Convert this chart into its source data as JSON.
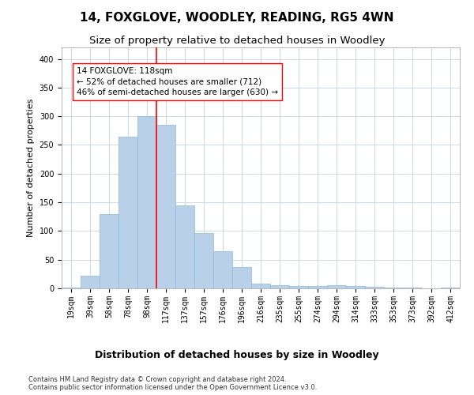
{
  "title": "14, FOXGLOVE, WOODLEY, READING, RG5 4WN",
  "subtitle": "Size of property relative to detached houses in Woodley",
  "xlabel_bottom": "Distribution of detached houses by size in Woodley",
  "ylabel": "Number of detached properties",
  "bar_color": "#b8d0e8",
  "bar_edge_color": "#90b8d8",
  "categories": [
    "19sqm",
    "39sqm",
    "58sqm",
    "78sqm",
    "98sqm",
    "117sqm",
    "137sqm",
    "157sqm",
    "176sqm",
    "196sqm",
    "216sqm",
    "235sqm",
    "255sqm",
    "274sqm",
    "294sqm",
    "314sqm",
    "333sqm",
    "353sqm",
    "373sqm",
    "392sqm",
    "412sqm"
  ],
  "values": [
    1,
    22,
    130,
    265,
    300,
    285,
    145,
    97,
    65,
    37,
    8,
    6,
    4,
    4,
    5,
    4,
    3,
    2,
    1,
    0,
    1
  ],
  "ylim": [
    0,
    420
  ],
  "yticks": [
    0,
    50,
    100,
    150,
    200,
    250,
    300,
    350,
    400
  ],
  "red_line_index": 5,
  "annotation_text": "14 FOXGLOVE: 118sqm\n← 52% of detached houses are smaller (712)\n46% of semi-detached houses are larger (630) →",
  "footer_line1": "Contains HM Land Registry data © Crown copyright and database right 2024.",
  "footer_line2": "Contains public sector information licensed under the Open Government Licence v3.0.",
  "background_color": "#ffffff",
  "grid_color": "#ccd9e8",
  "title_fontsize": 11,
  "subtitle_fontsize": 9.5,
  "axis_label_fontsize": 8,
  "tick_fontsize": 7,
  "footer_fontsize": 6,
  "annotation_fontsize": 7.5
}
